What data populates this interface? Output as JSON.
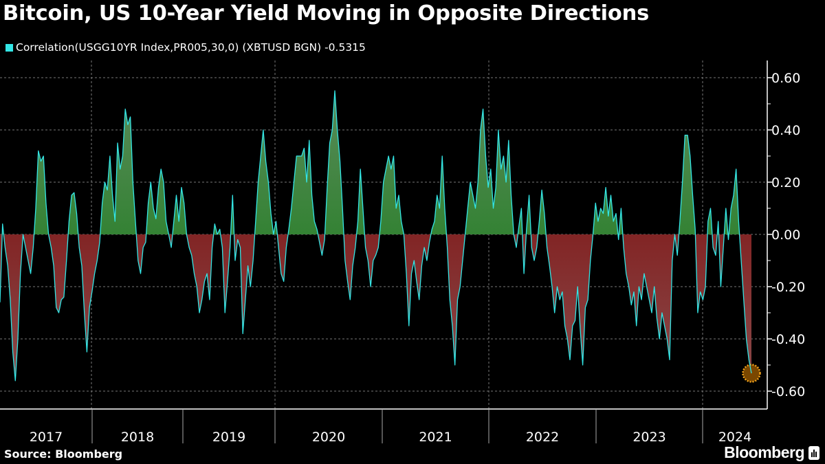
{
  "title": "Bitcoin, US 10-Year Yield Moving in Opposite Directions",
  "legend": {
    "label": "Correlation(USGG10YR Index,PR005,30,0) (XBTUSD BGN) -0.5315",
    "color": "#33e6e6"
  },
  "source": "Source: Bloomberg",
  "brand": "Bloomberg",
  "colors": {
    "line": "#33e6e6",
    "positive": "#1a8a1a",
    "negative": "#8b0a0a",
    "marker": "#f2a31b"
  },
  "chart_data": {
    "type": "area",
    "title": "Bitcoin, US 10-Year Yield Moving in Opposite Directions",
    "series_name": "Correlation(USGG10YR Index,PR005,30,0) (XBTUSD BGN)",
    "last_value": -0.5315,
    "x_start": "2017-01",
    "x_end": "2024-06",
    "x_tick_labels": [
      "2017",
      "2018",
      "2019",
      "2020",
      "2021",
      "2022",
      "2023",
      "2024"
    ],
    "y_ticks": [
      "0.60",
      "0.40",
      "0.20",
      "0.00",
      "-0.20",
      "-0.40",
      "-0.60"
    ],
    "ylim": [
      -0.67,
      0.67
    ],
    "grid": true,
    "y_axis_side": "right",
    "values": [
      -0.26,
      0.04,
      -0.05,
      -0.12,
      -0.25,
      -0.45,
      -0.56,
      -0.4,
      -0.15,
      0.0,
      -0.05,
      -0.1,
      -0.15,
      -0.05,
      0.1,
      0.32,
      0.28,
      0.3,
      0.12,
      0.0,
      -0.05,
      -0.12,
      -0.28,
      -0.3,
      -0.25,
      -0.24,
      -0.1,
      0.05,
      0.15,
      0.16,
      0.08,
      -0.05,
      -0.12,
      -0.3,
      -0.45,
      -0.28,
      -0.22,
      -0.15,
      -0.1,
      -0.03,
      0.12,
      0.2,
      0.17,
      0.3,
      0.15,
      0.05,
      0.35,
      0.25,
      0.3,
      0.48,
      0.42,
      0.45,
      0.2,
      0.05,
      -0.1,
      -0.15,
      -0.05,
      -0.03,
      0.12,
      0.2,
      0.1,
      0.06,
      0.18,
      0.25,
      0.2,
      0.05,
      0.0,
      -0.05,
      0.05,
      0.15,
      0.05,
      0.18,
      0.12,
      0.0,
      -0.05,
      -0.08,
      -0.15,
      -0.2,
      -0.3,
      -0.25,
      -0.18,
      -0.15,
      -0.25,
      -0.05,
      0.04,
      0.0,
      0.02,
      -0.05,
      -0.3,
      -0.18,
      -0.05,
      0.15,
      -0.1,
      -0.02,
      -0.05,
      -0.38,
      -0.25,
      -0.12,
      -0.2,
      -0.1,
      0.05,
      0.2,
      0.3,
      0.4,
      0.28,
      0.2,
      0.08,
      0.0,
      0.05,
      -0.05,
      -0.15,
      -0.18,
      -0.05,
      0.02,
      0.1,
      0.2,
      0.3,
      0.3,
      0.3,
      0.33,
      0.2,
      0.36,
      0.15,
      0.05,
      0.02,
      -0.03,
      -0.08,
      -0.02,
      0.18,
      0.35,
      0.4,
      0.55,
      0.4,
      0.28,
      0.1,
      -0.1,
      -0.18,
      -0.25,
      -0.12,
      -0.05,
      0.05,
      0.25,
      0.1,
      -0.05,
      -0.1,
      -0.2,
      -0.1,
      -0.08,
      -0.05,
      0.05,
      0.2,
      0.25,
      0.3,
      0.25,
      0.3,
      0.1,
      0.15,
      0.05,
      0.0,
      -0.15,
      -0.35,
      -0.15,
      -0.1,
      -0.18,
      -0.25,
      -0.12,
      -0.05,
      -0.1,
      -0.03,
      0.02,
      0.05,
      0.15,
      0.1,
      0.3,
      0.1,
      -0.05,
      -0.25,
      -0.35,
      -0.5,
      -0.25,
      -0.2,
      -0.1,
      0.0,
      0.1,
      0.2,
      0.15,
      0.1,
      0.2,
      0.4,
      0.48,
      0.3,
      0.18,
      0.25,
      0.1,
      0.18,
      0.4,
      0.25,
      0.3,
      0.2,
      0.36,
      0.15,
      0.0,
      -0.05,
      0.03,
      0.1,
      -0.15,
      0.02,
      0.15,
      -0.05,
      -0.1,
      -0.05,
      0.05,
      0.17,
      0.08,
      -0.05,
      -0.12,
      -0.2,
      -0.3,
      -0.2,
      -0.25,
      -0.22,
      -0.35,
      -0.4,
      -0.48,
      -0.35,
      -0.33,
      -0.2,
      -0.36,
      -0.5,
      -0.28,
      -0.25,
      -0.1,
      0.0,
      0.12,
      0.05,
      0.1,
      0.08,
      0.18,
      0.07,
      0.15,
      0.05,
      0.08,
      -0.02,
      0.1,
      -0.05,
      -0.15,
      -0.2,
      -0.27,
      -0.22,
      -0.35,
      -0.2,
      -0.25,
      -0.15,
      -0.2,
      -0.25,
      -0.3,
      -0.2,
      -0.32,
      -0.4,
      -0.3,
      -0.35,
      -0.4,
      -0.48,
      -0.1,
      0.0,
      -0.08,
      0.05,
      0.2,
      0.38,
      0.38,
      0.3,
      0.15,
      0.02,
      -0.3,
      -0.22,
      -0.25,
      -0.2,
      0.05,
      0.1,
      -0.05,
      -0.08,
      0.05,
      -0.2,
      -0.05,
      0.1,
      -0.02,
      0.1,
      0.15,
      0.25,
      0.05,
      -0.1,
      -0.25,
      -0.4,
      -0.48,
      -0.5315
    ]
  }
}
